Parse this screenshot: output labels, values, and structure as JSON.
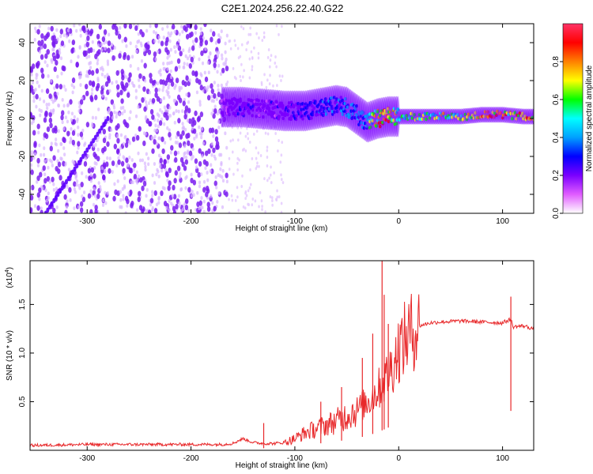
{
  "title": "C2E1.2024.256.22.40.G22",
  "colors": {
    "spectrum_low": "#7a1cf0",
    "snr_line": "#e8282a",
    "colorbar": [
      "#ffffff",
      "#e05cff",
      "#7a00ff",
      "#0000ff",
      "#00a0ff",
      "#00ffff",
      "#00ff00",
      "#ffff00",
      "#ff8000",
      "#ff0000",
      "#ff3366"
    ]
  },
  "chart_data": [
    {
      "type": "heatmap",
      "title": "C2E1.2024.256.22.40.G22",
      "xlabel": "Height of straight line (km)",
      "ylabel": "Frequency (Hz)",
      "xlim": [
        -355,
        130
      ],
      "ylim": [
        -50,
        50
      ],
      "x_ticks": [
        -300,
        -200,
        -100,
        0,
        100
      ],
      "y_ticks": [
        -40,
        -20,
        0,
        20,
        40
      ],
      "grid": false,
      "colorbar": {
        "label": "Normalized spectral amplitude",
        "range": [
          0,
          1
        ],
        "ticks": [
          0.0,
          0.2,
          0.4,
          0.6,
          0.8
        ]
      },
      "ridge": {
        "x": [
          -170,
          -150,
          -130,
          -110,
          -90,
          -70,
          -60,
          -50,
          -40,
          -30,
          -20,
          -10,
          0,
          20,
          40,
          60,
          80,
          100,
          120,
          130
        ],
        "frequency": [
          6,
          6,
          5,
          4,
          4,
          6,
          7,
          6,
          2,
          -2,
          0,
          1,
          1,
          1,
          1,
          1,
          2,
          2,
          1,
          1
        ],
        "amplitude": [
          0.2,
          0.25,
          0.22,
          0.25,
          0.3,
          0.35,
          0.4,
          0.38,
          0.45,
          0.5,
          0.85,
          0.9,
          0.6,
          0.65,
          0.7,
          0.75,
          0.95,
          0.9,
          0.85,
          0.8
        ]
      },
      "noise_region_x": [
        -355,
        -165
      ],
      "diagonal_feature": {
        "x": [
          -340,
          -280
        ],
        "frequency": [
          -50,
          0
        ]
      }
    },
    {
      "type": "line",
      "xlabel": "Height of straight line (km)",
      "ylabel": "SNR (10 * v/v)",
      "scale_label": "(x10",
      "scale_exponent": "4",
      "scale_close": ")",
      "xlim": [
        -355,
        130
      ],
      "ylim": [
        0,
        1.95
      ],
      "x_ticks": [
        -300,
        -200,
        -100,
        0,
        100
      ],
      "y_ticks": [
        0.5,
        1.0,
        1.5
      ],
      "grid": false,
      "series": [
        {
          "x": [
            -355,
            -300,
            -250,
            -200,
            -170,
            -160,
            -150,
            -140,
            -130,
            -120,
            -110,
            -100,
            -90,
            -80,
            -70,
            -60,
            -50,
            -40,
            -30,
            -20,
            -15,
            -10,
            -5,
            0,
            10,
            20,
            30,
            40,
            60,
            80,
            100,
            108,
            110,
            120,
            130
          ],
          "values": [
            0.05,
            0.06,
            0.06,
            0.06,
            0.06,
            0.07,
            0.12,
            0.08,
            0.07,
            0.07,
            0.08,
            0.12,
            0.18,
            0.22,
            0.26,
            0.3,
            0.36,
            0.42,
            0.5,
            0.62,
            0.7,
            0.78,
            0.9,
            1.05,
            1.2,
            1.28,
            1.31,
            1.32,
            1.33,
            1.32,
            1.31,
            1.35,
            1.27,
            1.28,
            1.25
          ],
          "spikes": [
            {
              "x": -16,
              "y": 1.95
            },
            {
              "x": -14,
              "y": 1.6
            },
            {
              "x": -10,
              "y": 1.3
            },
            {
              "x": -25,
              "y": 1.2
            },
            {
              "x": -35,
              "y": 0.95
            },
            {
              "x": -55,
              "y": 0.65
            },
            {
              "x": -75,
              "y": 0.5
            },
            {
              "x": -130,
              "y": 0.28
            },
            {
              "x": 108,
              "y": 1.58
            }
          ]
        }
      ]
    }
  ]
}
